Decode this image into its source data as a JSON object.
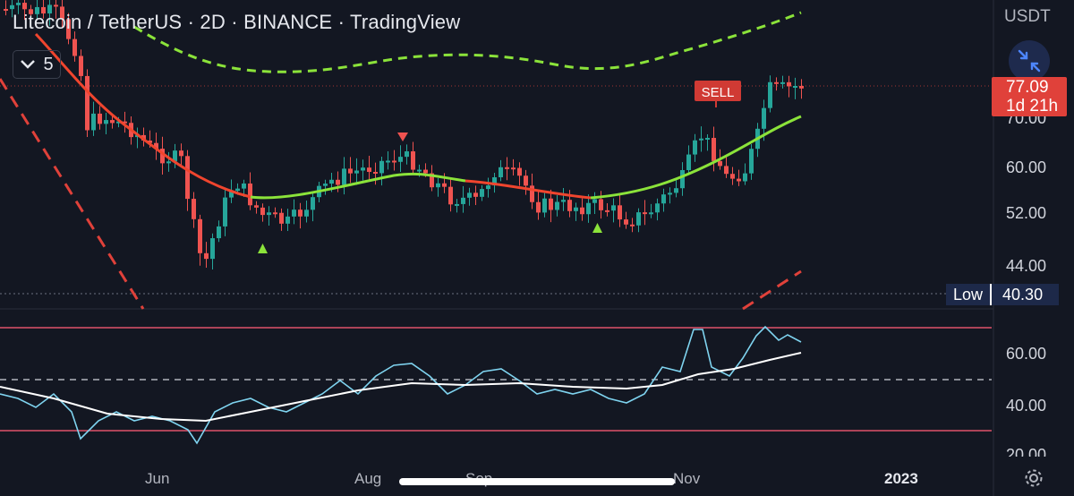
{
  "header": {
    "title": "Litecoin / TetherUS · 2D · BINANCE · TradingView",
    "indicator_count": "5",
    "currency": "USDT"
  },
  "price_axis": {
    "labels": [
      "70.00",
      "60.00",
      "52.00",
      "44.00"
    ],
    "current_price": "77.09",
    "countdown": "1d 21h",
    "low_label": "Low",
    "low_value": "40.30"
  },
  "rsi_axis": {
    "labels": [
      "60.00",
      "40.00",
      "20.00"
    ]
  },
  "signals": {
    "sell_label": "SELL"
  },
  "time_axis": {
    "labels": [
      "Jun",
      "Aug",
      "Sep",
      "Nov",
      "2023"
    ]
  },
  "colors": {
    "background": "#131722",
    "up": "#26a69a",
    "down": "#ef5350",
    "ma_green": "#8be33a",
    "ma_red": "#f0452e",
    "rsi": "#7fd4f0",
    "sell_tag": "#d03a34"
  },
  "icons": {
    "collapse": "collapse-arrows-icon",
    "settings": "gear-icon",
    "indicators": "chevron-down-icon"
  }
}
